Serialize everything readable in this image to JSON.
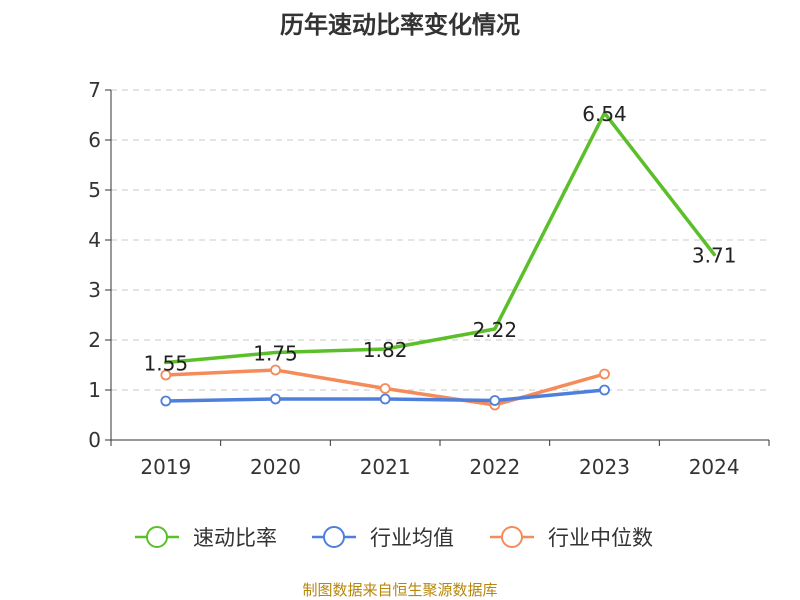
{
  "chart_data": {
    "type": "line",
    "title": "历年速动比率变化情况",
    "categories": [
      "2019",
      "2020",
      "2021",
      "2022",
      "2023",
      "2024"
    ],
    "ylim": [
      0,
      7
    ],
    "yticks": [
      "0",
      "1",
      "2",
      "3",
      "4",
      "5",
      "6",
      "7"
    ],
    "grid": true,
    "legend_position": "bottom",
    "series": [
      {
        "name": "速动比率",
        "color": "#5bbf2a",
        "values": [
          1.55,
          1.75,
          1.82,
          2.22,
          6.54,
          3.71
        ],
        "labels": [
          "1.55",
          "1.75",
          "1.82",
          "2.22",
          "6.54",
          "3.71"
        ]
      },
      {
        "name": "行业均值",
        "color": "#4f7fdc",
        "values": [
          0.78,
          0.82,
          0.82,
          0.79,
          1.0,
          null
        ]
      },
      {
        "name": "行业中位数",
        "color": "#f58b59",
        "values": [
          1.3,
          1.4,
          1.03,
          0.7,
          1.32,
          null
        ]
      }
    ]
  },
  "source_note": "制图数据来自恒生聚源数据库"
}
